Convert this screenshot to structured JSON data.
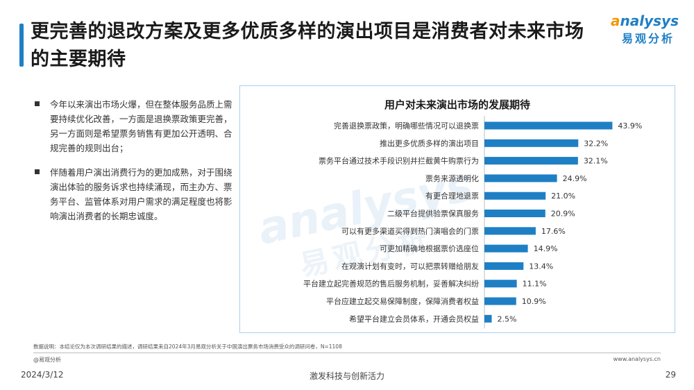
{
  "header": {
    "title": "更完善的退改方案及更多优质多样的演出项目是消费者对未来市场的主要期待",
    "logo_en_prefix": "a",
    "logo_en_rest": "nalysys",
    "logo_cn": "易观分析"
  },
  "bullets": [
    "今年以来演出市场火爆，但在整体服务品质上需要持续优化改善，一方面是退换票政策更完善，另一方面则是希望票务销售有更加公开透明、合规完善的规则出台；",
    "伴随着用户演出消费行为的更加成熟，对于围绕演出体验的服务诉求也持续涌现，而主办方、票务平台、监管体系对用户需求的满足程度也将影响演出消费者的长期忠诚度。"
  ],
  "watermark": {
    "en": "analysys",
    "cn": "易观分析"
  },
  "chart_data": {
    "type": "bar",
    "orientation": "horizontal",
    "title": "用户对未来演出市场的发展期待",
    "categories": [
      "完善退换票政策，明确哪些情况可以退换票",
      "推出更多优质多样的演出项目",
      "票务平台通过技术手段识别并拦截黄牛购票行为",
      "票务来源透明化",
      "有更合理地退票",
      "二级平台提供验票保真服务",
      "可以有更多渠道买得到热门演唱会的门票",
      "可更加精确地根据票价选座位",
      "在观演计划有变时，可以把票转赠给朋友",
      "平台建立起完善规范的售后服务机制，妥善解决纠纷",
      "平台应建立起交易保障制度，保障消费者权益",
      "希望平台建立会员体系，开通会员权益"
    ],
    "values": [
      43.9,
      32.2,
      32.1,
      24.9,
      21.0,
      20.9,
      17.6,
      14.9,
      13.4,
      11.1,
      10.9,
      2.5
    ],
    "value_labels": [
      "43.9%",
      "32.2%",
      "32.1%",
      "24.9%",
      "21.0%",
      "20.9%",
      "17.6%",
      "14.9%",
      "13.4%",
      "11.1%",
      "10.9%",
      "2.5%"
    ],
    "xlim": [
      0,
      50
    ],
    "bar_color": "#1f7fc4",
    "grid": false,
    "legend": false
  },
  "footer": {
    "note": "数据说明：本结论仅为本次调研结果的描述，调研结果来自2024年3月易观分析关于中国演出票务市场消费受众的调研问卷，N=1108",
    "copyright": "@易观分析",
    "website": "www.analysys.cn",
    "date": "2024/3/12",
    "slogan": "激发科技与创新活力",
    "page": "29"
  }
}
